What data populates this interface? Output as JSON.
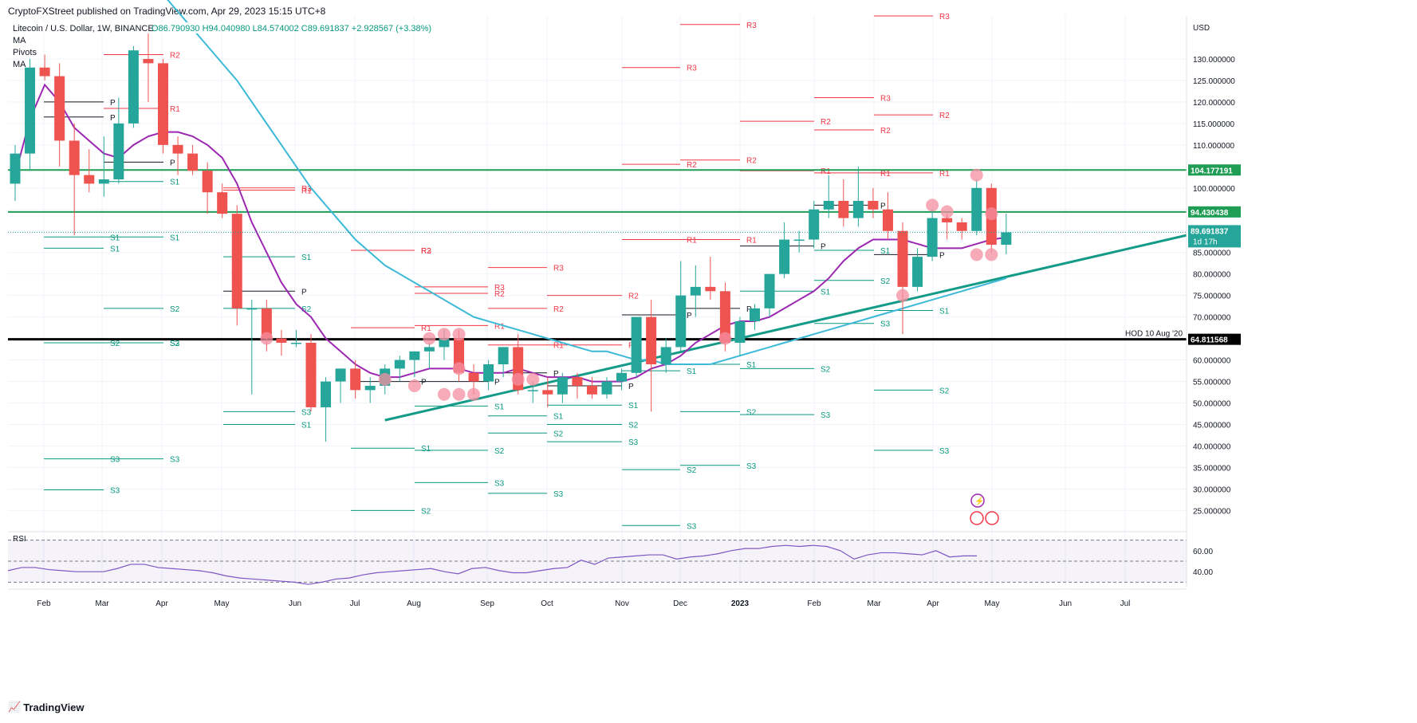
{
  "header": {
    "published": "CryptoFXStreet published on TradingView.com, Apr 29, 2023 15:15 UTC+8"
  },
  "legend": {
    "symbol": "Litecoin / U.S. Dollar, 1W, BINANCE",
    "ohlc": "O86.790930 H94.040980 L84.574002 C89.691837 +2.928567 (+3.38%)",
    "indicators": [
      "MA",
      "Pivots",
      "MA"
    ]
  },
  "rsi_label": "RSI",
  "footer": {
    "logo_text": "TradingView"
  },
  "colors": {
    "up": "#26a69a",
    "down": "#ef5350",
    "ma_fast": "#9c27b0",
    "ma_slow": "#3cb9d6",
    "trendline": "#149b88",
    "resistance": "#1f9d55",
    "support_hod": "#000000",
    "rsi_line": "#7e57c2",
    "pivot_r": "#f23645",
    "pivot_s": "#089981"
  },
  "chart_data": {
    "type": "candlestick",
    "price_axis": {
      "unit": "USD",
      "ticks": [
        "130.000000",
        "125.000000",
        "120.000000",
        "115.000000",
        "110.000000",
        "100.000000",
        "85.000000",
        "80.000000",
        "75.000000",
        "70.000000",
        "60.000000",
        "55.000000",
        "50.000000",
        "45.000000",
        "40.000000",
        "35.000000",
        "30.000000",
        "25.000000"
      ],
      "ylim": [
        21,
        140
      ]
    },
    "time_axis": [
      "Feb",
      "Mar",
      "Apr",
      "May",
      "Jun",
      "Jul",
      "Aug",
      "Sep",
      "Oct",
      "Nov",
      "Dec",
      "2023",
      "Feb",
      "Mar",
      "Apr",
      "May",
      "Jun",
      "Jul"
    ],
    "candles": [
      {
        "o": 101,
        "h": 110,
        "l": 97,
        "c": 108
      },
      {
        "o": 108,
        "h": 130,
        "l": 104,
        "c": 128
      },
      {
        "o": 128,
        "h": 131,
        "l": 125,
        "c": 126
      },
      {
        "o": 126,
        "h": 129,
        "l": 105,
        "c": 111
      },
      {
        "o": 111,
        "h": 115,
        "l": 89,
        "c": 103
      },
      {
        "o": 103,
        "h": 109,
        "l": 99,
        "c": 101
      },
      {
        "o": 101,
        "h": 112,
        "l": 98,
        "c": 102
      },
      {
        "o": 102,
        "h": 121,
        "l": 101,
        "c": 115
      },
      {
        "o": 115,
        "h": 133,
        "l": 114,
        "c": 132
      },
      {
        "o": 130,
        "h": 137,
        "l": 120,
        "c": 129
      },
      {
        "o": 129,
        "h": 130,
        "l": 108,
        "c": 110
      },
      {
        "o": 110,
        "h": 112,
        "l": 103,
        "c": 108
      },
      {
        "o": 108,
        "h": 110,
        "l": 103,
        "c": 104
      },
      {
        "o": 104,
        "h": 106,
        "l": 94,
        "c": 99
      },
      {
        "o": 99,
        "h": 101,
        "l": 93,
        "c": 94
      },
      {
        "o": 94,
        "h": 96,
        "l": 68,
        "c": 72
      },
      {
        "o": 72,
        "h": 74,
        "l": 52,
        "c": 72
      },
      {
        "o": 72,
        "h": 74,
        "l": 62,
        "c": 65
      },
      {
        "o": 65,
        "h": 67,
        "l": 61,
        "c": 64
      },
      {
        "o": 64,
        "h": 67,
        "l": 63,
        "c": 64
      },
      {
        "o": 64,
        "h": 66,
        "l": 48,
        "c": 49
      },
      {
        "o": 49,
        "h": 56,
        "l": 41,
        "c": 55
      },
      {
        "o": 55,
        "h": 58,
        "l": 50,
        "c": 58
      },
      {
        "o": 58,
        "h": 60,
        "l": 51,
        "c": 53
      },
      {
        "o": 53,
        "h": 56,
        "l": 50,
        "c": 54
      },
      {
        "o": 54,
        "h": 59,
        "l": 52,
        "c": 58
      },
      {
        "o": 58,
        "h": 61,
        "l": 55,
        "c": 60
      },
      {
        "o": 60,
        "h": 62,
        "l": 56,
        "c": 62
      },
      {
        "o": 62,
        "h": 64,
        "l": 58,
        "c": 63
      },
      {
        "o": 63,
        "h": 67,
        "l": 60,
        "c": 65
      },
      {
        "o": 65,
        "h": 67,
        "l": 55,
        "c": 57
      },
      {
        "o": 57,
        "h": 59,
        "l": 52,
        "c": 55
      },
      {
        "o": 55,
        "h": 60,
        "l": 53,
        "c": 59
      },
      {
        "o": 59,
        "h": 63,
        "l": 56,
        "c": 63
      },
      {
        "o": 63,
        "h": 66,
        "l": 52,
        "c": 53
      },
      {
        "o": 53,
        "h": 55,
        "l": 50,
        "c": 53
      },
      {
        "o": 53,
        "h": 56,
        "l": 49,
        "c": 52
      },
      {
        "o": 52,
        "h": 57,
        "l": 50,
        "c": 56
      },
      {
        "o": 56,
        "h": 57,
        "l": 51,
        "c": 54
      },
      {
        "o": 54,
        "h": 56,
        "l": 51,
        "c": 52
      },
      {
        "o": 52,
        "h": 56,
        "l": 51,
        "c": 55
      },
      {
        "o": 55,
        "h": 58,
        "l": 53,
        "c": 57
      },
      {
        "o": 57,
        "h": 70,
        "l": 56,
        "c": 70
      },
      {
        "o": 70,
        "h": 74,
        "l": 48,
        "c": 59
      },
      {
        "o": 59,
        "h": 65,
        "l": 57,
        "c": 63
      },
      {
        "o": 63,
        "h": 83,
        "l": 62,
        "c": 75
      },
      {
        "o": 75,
        "h": 82,
        "l": 70,
        "c": 77
      },
      {
        "o": 77,
        "h": 84,
        "l": 74,
        "c": 76
      },
      {
        "o": 76,
        "h": 78,
        "l": 62,
        "c": 64
      },
      {
        "o": 64,
        "h": 70,
        "l": 61,
        "c": 69
      },
      {
        "o": 69,
        "h": 73,
        "l": 67,
        "c": 72
      },
      {
        "o": 72,
        "h": 80,
        "l": 70,
        "c": 80
      },
      {
        "o": 80,
        "h": 92,
        "l": 79,
        "c": 88
      },
      {
        "o": 88,
        "h": 90,
        "l": 85,
        "c": 88
      },
      {
        "o": 88,
        "h": 97,
        "l": 86,
        "c": 95
      },
      {
        "o": 95,
        "h": 103,
        "l": 93,
        "c": 97
      },
      {
        "o": 97,
        "h": 102,
        "l": 91,
        "c": 93
      },
      {
        "o": 93,
        "h": 105,
        "l": 91,
        "c": 97
      },
      {
        "o": 97,
        "h": 100,
        "l": 93,
        "c": 95
      },
      {
        "o": 95,
        "h": 99,
        "l": 88,
        "c": 90
      },
      {
        "o": 90,
        "h": 92,
        "l": 66,
        "c": 77
      },
      {
        "o": 77,
        "h": 86,
        "l": 76,
        "c": 84
      },
      {
        "o": 84,
        "h": 95,
        "l": 83,
        "c": 93
      },
      {
        "o": 93,
        "h": 94,
        "l": 88,
        "c": 92
      },
      {
        "o": 92,
        "h": 93,
        "l": 88,
        "c": 90
      },
      {
        "o": 90,
        "h": 102,
        "l": 89,
        "c": 100
      },
      {
        "o": 100,
        "h": 101,
        "l": 85,
        "c": 86.79
      },
      {
        "o": 86.79,
        "h": 94.04,
        "l": 84.57,
        "c": 89.69
      }
    ],
    "ma_fast": [
      103,
      116,
      124,
      120,
      114,
      111,
      108,
      107,
      110,
      112,
      113,
      113,
      112,
      110,
      107,
      101,
      92,
      85,
      78,
      73,
      70,
      65,
      62,
      59,
      57,
      56,
      56,
      57,
      58,
      58,
      58,
      57,
      57,
      57,
      58,
      57,
      56,
      56,
      56,
      55,
      55,
      55,
      56,
      58,
      59,
      61,
      64,
      66,
      68,
      69,
      69,
      70,
      72,
      74,
      76,
      79,
      83,
      86,
      88,
      88,
      88,
      87,
      86,
      86,
      86,
      87,
      88,
      88.5
    ],
    "ma_slow": [
      160,
      157,
      153,
      149,
      145,
      141,
      137,
      133,
      129,
      125,
      120,
      115,
      110,
      105,
      100,
      96,
      92,
      88,
      85,
      82,
      80,
      78,
      76,
      74,
      72,
      70,
      69,
      68,
      67,
      66,
      65,
      64,
      63,
      62,
      62,
      61,
      60,
      60,
      59,
      59,
      59,
      59,
      60,
      61,
      62,
      63,
      64,
      65,
      66,
      67,
      68,
      69,
      70,
      71,
      72,
      73,
      74,
      75,
      76,
      77,
      78,
      79
    ],
    "pivot_levels": [
      {
        "label": "P",
        "value": 120
      },
      {
        "label": "P",
        "value": 116.5
      },
      {
        "label": "S1",
        "value": 88.6
      },
      {
        "label": "S1",
        "value": 86
      },
      {
        "label": "S2",
        "value": 64
      },
      {
        "label": "S3",
        "value": 37
      },
      {
        "label": "S3",
        "value": 29.8
      },
      {
        "label": "R2",
        "value": 131
      },
      {
        "label": "R1",
        "value": 118.5
      },
      {
        "label": "P",
        "value": 106
      },
      {
        "label": "S1",
        "value": 101.5
      },
      {
        "label": "S1",
        "value": 88.6
      },
      {
        "label": "S2",
        "value": 72
      },
      {
        "label": "S2",
        "value": 64
      },
      {
        "label": "S3",
        "value": 64
      },
      {
        "label": "S3",
        "value": 37
      },
      {
        "label": "R3",
        "value": 100
      },
      {
        "label": "R1",
        "value": 99.5
      },
      {
        "label": "P",
        "value": 76
      },
      {
        "label": "S1",
        "value": 84
      },
      {
        "label": "S1",
        "value": 45
      },
      {
        "label": "S2",
        "value": 72
      },
      {
        "label": "S3",
        "value": 48
      },
      {
        "label": "R3",
        "value": 85.5
      },
      {
        "label": "R2",
        "value": 85.5
      },
      {
        "label": "R1",
        "value": 67.5
      },
      {
        "label": "P",
        "value": 55
      },
      {
        "label": "S1",
        "value": 39.5
      },
      {
        "label": "S2",
        "value": 25
      },
      {
        "label": "R3",
        "value": 77
      },
      {
        "label": "R2",
        "value": 75.5
      },
      {
        "label": "R1",
        "value": 68
      },
      {
        "label": "P",
        "value": 55
      },
      {
        "label": "S1",
        "value": 49.3
      },
      {
        "label": "S2",
        "value": 39
      },
      {
        "label": "S3",
        "value": 31.5
      },
      {
        "label": "R3",
        "value": 81.5
      },
      {
        "label": "R2",
        "value": 72
      },
      {
        "label": "R1",
        "value": 63.5
      },
      {
        "label": "P",
        "value": 57
      },
      {
        "label": "S1",
        "value": 47
      },
      {
        "label": "S2",
        "value": 43
      },
      {
        "label": "S3",
        "value": 29
      },
      {
        "label": "R2",
        "value": 75
      },
      {
        "label": "R1",
        "value": 63.5
      },
      {
        "label": "P",
        "value": 54
      },
      {
        "label": "S1",
        "value": 49.5
      },
      {
        "label": "S2",
        "value": 45
      },
      {
        "label": "S3",
        "value": 41
      },
      {
        "label": "R3",
        "value": 128
      },
      {
        "label": "R2",
        "value": 105.5
      },
      {
        "label": "R1",
        "value": 88
      },
      {
        "label": "P",
        "value": 70.5
      },
      {
        "label": "S1",
        "value": 57.5
      },
      {
        "label": "S2",
        "value": 34.5
      },
      {
        "label": "S3",
        "value": 21.5
      },
      {
        "label": "R2",
        "value": 106.5
      },
      {
        "label": "R1",
        "value": 88
      },
      {
        "label": "P",
        "value": 72
      },
      {
        "label": "S1",
        "value": 59
      },
      {
        "label": "S2",
        "value": 48
      },
      {
        "label": "S3",
        "value": 35.5
      },
      {
        "label": "R3",
        "value": 138
      },
      {
        "label": "R2",
        "value": 115.5
      },
      {
        "label": "R1",
        "value": 104
      },
      {
        "label": "P",
        "value": 86.5
      },
      {
        "label": "S1",
        "value": 76
      },
      {
        "label": "S2",
        "value": 58
      },
      {
        "label": "S3",
        "value": 47.3
      },
      {
        "label": "R3",
        "value": 121
      },
      {
        "label": "R2",
        "value": 113.5
      },
      {
        "label": "R1",
        "value": 103.5
      },
      {
        "label": "P",
        "value": 96
      },
      {
        "label": "S1",
        "value": 85.5
      },
      {
        "label": "S2",
        "value": 78.5
      },
      {
        "label": "S3",
        "value": 68.5
      },
      {
        "label": "R3",
        "value": 140
      },
      {
        "label": "R2",
        "value": 117
      },
      {
        "label": "R1",
        "value": 103.5
      },
      {
        "label": "P",
        "value": 84.5
      },
      {
        "label": "S1",
        "value": 71.5
      },
      {
        "label": "S2",
        "value": 53
      },
      {
        "label": "S3",
        "value": 39
      }
    ],
    "horizontal_levels": [
      {
        "label": "104.177191",
        "value": 104.177191,
        "role": "resistance"
      },
      {
        "label": "94.430438",
        "value": 94.430438,
        "role": "resistance"
      },
      {
        "label": "64.811568",
        "value": 64.811568,
        "role": "support",
        "note": "HOD 10 Aug '20"
      }
    ],
    "current_price": {
      "label": "89.691837",
      "countdown": "1d 17h"
    },
    "trendline": {
      "from_candle": 25,
      "from_value": 46,
      "to_value": 89
    },
    "markers": [
      [
        17,
        65
      ],
      [
        25,
        55.5
      ],
      [
        27,
        54
      ],
      [
        28,
        65
      ],
      [
        29,
        66
      ],
      [
        29,
        52
      ],
      [
        30,
        66
      ],
      [
        30,
        52
      ],
      [
        30,
        58
      ],
      [
        31,
        52
      ],
      [
        34,
        55.5
      ],
      [
        35,
        55.5
      ],
      [
        48,
        65
      ],
      [
        60,
        75
      ],
      [
        62,
        96
      ],
      [
        63,
        94.5
      ],
      [
        65,
        103
      ],
      [
        65,
        84.5
      ],
      [
        66,
        94
      ],
      [
        66,
        84.5
      ]
    ],
    "rsi": {
      "label": "RSI",
      "ticks": [
        "60.00",
        "40.00"
      ],
      "ylim": [
        25,
        75
      ],
      "values": [
        41,
        44,
        44,
        42,
        41,
        40,
        40,
        40,
        43,
        47,
        47,
        44,
        43,
        42,
        41,
        39,
        36,
        34,
        33,
        32,
        31,
        30,
        28,
        30,
        33,
        34,
        37,
        39,
        40,
        41,
        42,
        43,
        40,
        38,
        43,
        44,
        41,
        39,
        39,
        41,
        43,
        44,
        51,
        47,
        53,
        54,
        55,
        56,
        56,
        52,
        54,
        55,
        57,
        60,
        62,
        62,
        64,
        65,
        64,
        65,
        64,
        60,
        52,
        56,
        58,
        58,
        57,
        56,
        60,
        54,
        55,
        55
      ]
    }
  }
}
